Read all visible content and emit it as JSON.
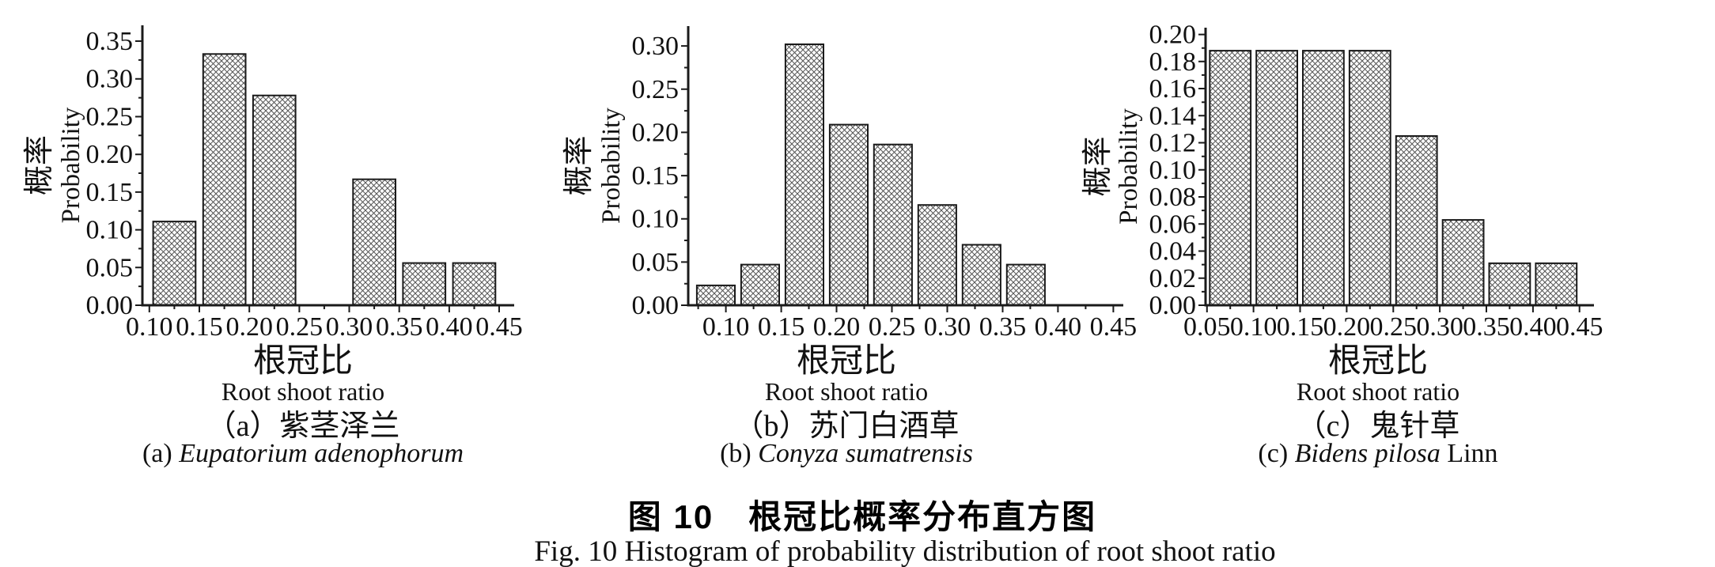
{
  "figure": {
    "title_zh": "图 10　根冠比概率分布直方图",
    "title_en": "Fig. 10 Histogram of probability distribution of root shoot ratio"
  },
  "style": {
    "axis_color": "#1a1a1a",
    "hatch_line_color": "#555555",
    "bar_fill": "#ffffff",
    "text_color": "#111111"
  },
  "chart_data": [
    {
      "id": "a",
      "type": "bar",
      "title_zh": "（a）紫茎泽兰",
      "title_en": {
        "prefix": "(a) ",
        "italic": "Eupatorium adenophorum",
        "suffix": ""
      },
      "xlabel_zh": "根冠比",
      "xlabel_en": "Root shoot ratio",
      "ylabel_zh": "概率",
      "ylabel_en": "Probability",
      "bin_start": 0.1,
      "bin_width": 0.05,
      "values": [
        0.111,
        0.333,
        0.278,
        0,
        0.167,
        0.056,
        0.056
      ],
      "xticks": [
        0.1,
        0.15,
        0.2,
        0.25,
        0.3,
        0.35,
        0.4,
        0.45
      ],
      "yticks": [
        0.0,
        0.05,
        0.1,
        0.15,
        0.2,
        0.25,
        0.3,
        0.35
      ],
      "x_minor_step": 0.025,
      "y_minor_step": 0.025,
      "xlim": [
        0.093,
        0.465
      ],
      "ylim": [
        0,
        0.371
      ],
      "bar_rel_width": 0.85,
      "tick_label_format": "0.00",
      "hatch": "diagonal-cross",
      "grid": false,
      "legend": null
    },
    {
      "id": "b",
      "type": "bar",
      "title_zh": "（b）苏门白酒草",
      "title_en": {
        "prefix": "(b) ",
        "italic": "Conyza sumatrensis",
        "suffix": ""
      },
      "xlabel_zh": "根冠比",
      "xlabel_en": "Root shoot ratio",
      "ylabel_zh": "概率",
      "ylabel_en": "Probability",
      "bin_start": 0.071,
      "bin_width": 0.04,
      "values": [
        0.023,
        0.047,
        0.302,
        0.209,
        0.186,
        0.116,
        0.07,
        0.047
      ],
      "xticks": [
        0.1,
        0.15,
        0.2,
        0.25,
        0.3,
        0.35,
        0.4,
        0.45
      ],
      "yticks": [
        0.0,
        0.05,
        0.1,
        0.15,
        0.2,
        0.25,
        0.3
      ],
      "x_minor_step": 0.025,
      "y_minor_step": 0.025,
      "xlim": [
        0.066,
        0.459
      ],
      "ylim": [
        0,
        0.323
      ],
      "bar_rel_width": 0.86,
      "tick_label_format": "0.00",
      "hatch": "diagonal-cross",
      "grid": false,
      "legend": null
    },
    {
      "id": "c",
      "type": "bar",
      "title_zh": "（c）鬼针草",
      "title_en": {
        "prefix": "(c) ",
        "italic": "Bidens pilosa",
        "suffix": " Linn"
      },
      "xlabel_zh": "根冠比",
      "xlabel_en": "Root shoot ratio",
      "ylabel_zh": "概率",
      "ylabel_en": "Probability",
      "bin_start": 0.05,
      "bin_width": 0.05,
      "values": [
        0.188,
        0.188,
        0.188,
        0.188,
        0.125,
        0.063,
        0.031,
        0.031
      ],
      "xticks": [
        0.05,
        0.1,
        0.15,
        0.2,
        0.25,
        0.3,
        0.35,
        0.4,
        0.45
      ],
      "yticks": [
        0.0,
        0.02,
        0.04,
        0.06,
        0.08,
        0.1,
        0.12,
        0.14,
        0.16,
        0.18,
        0.2
      ],
      "x_minor_step": 0.025,
      "y_minor_step": 0.01,
      "xlim": [
        0.0485,
        0.4655
      ],
      "ylim": [
        0,
        0.205
      ],
      "bar_rel_width": 0.88,
      "tick_label_format": "0.00",
      "hatch": "diagonal-cross",
      "grid": false,
      "legend": null
    }
  ]
}
